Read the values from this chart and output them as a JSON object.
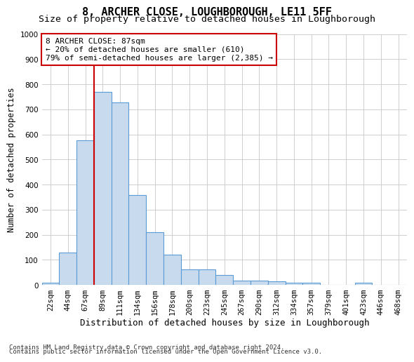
{
  "title": "8, ARCHER CLOSE, LOUGHBOROUGH, LE11 5FF",
  "subtitle": "Size of property relative to detached houses in Loughborough",
  "xlabel": "Distribution of detached houses by size in Loughborough",
  "ylabel": "Number of detached properties",
  "footer_line1": "Contains HM Land Registry data © Crown copyright and database right 2024.",
  "footer_line2": "Contains public sector information licensed under the Open Government Licence v3.0.",
  "bin_labels": [
    "22sqm",
    "44sqm",
    "67sqm",
    "89sqm",
    "111sqm",
    "134sqm",
    "156sqm",
    "178sqm",
    "200sqm",
    "223sqm",
    "245sqm",
    "267sqm",
    "290sqm",
    "312sqm",
    "334sqm",
    "357sqm",
    "379sqm",
    "401sqm",
    "423sqm",
    "446sqm",
    "468sqm"
  ],
  "bar_values": [
    10,
    128,
    575,
    770,
    728,
    357,
    210,
    120,
    63,
    63,
    38,
    18,
    18,
    13,
    8,
    8,
    0,
    0,
    8,
    0,
    0
  ],
  "bar_color": "#c8daee",
  "bar_edge_color": "#5b9bd5",
  "vline_color": "#cc0000",
  "annotation_line1": "8 ARCHER CLOSE: 87sqm",
  "annotation_line2": "← 20% of detached houses are smaller (610)",
  "annotation_line3": "79% of semi-detached houses are larger (2,385) →",
  "annotation_box_color": "#ffffff",
  "annotation_box_edge": "#cc0000",
  "ylim": [
    0,
    1000
  ],
  "yticks": [
    0,
    100,
    200,
    300,
    400,
    500,
    600,
    700,
    800,
    900,
    1000
  ],
  "grid_color": "#c8c8c8",
  "background_color": "#ffffff",
  "title_fontsize": 11,
  "subtitle_fontsize": 9.5,
  "xlabel_fontsize": 9,
  "ylabel_fontsize": 8.5,
  "tick_fontsize": 7.5,
  "annotation_fontsize": 8,
  "footer_fontsize": 6.5
}
